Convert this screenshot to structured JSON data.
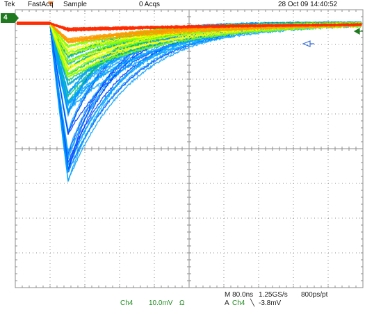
{
  "header": {
    "brand": "Tek",
    "mode": "FastAcq",
    "acq_mode": "Sample",
    "acqs": "0 Acqs",
    "datetime": "28 Oct 09 14:40:52"
  },
  "channel": {
    "marker": "4",
    "name": "Ch4",
    "scale": "10.0mV",
    "coupling": "Ω",
    "color": "#1f7a1f"
  },
  "timebase": {
    "main": "M 80.0ns",
    "sample_rate": "1.25GS/s",
    "resolution": "800ps/pt"
  },
  "trigger": {
    "source_prefix": "A",
    "source": "Ch4",
    "slope": "╲",
    "level": "-3.8mV",
    "marker_color": "#ff7f27"
  },
  "colors": {
    "grid": "#8c8c8c",
    "persistence": [
      "#ff2a00",
      "#ff9a00",
      "#ffff00",
      "#7cff00",
      "#00c070",
      "#00a0ff",
      "#0040ff"
    ]
  }
}
